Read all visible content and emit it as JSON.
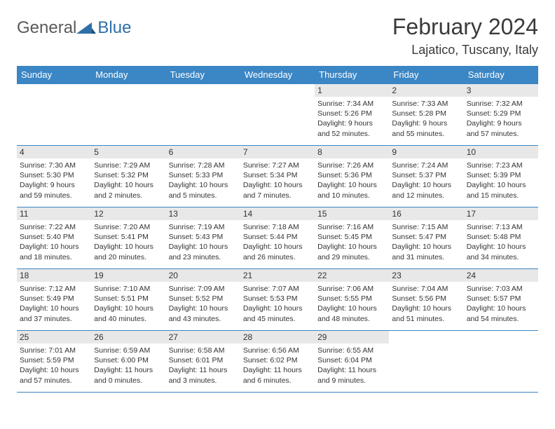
{
  "logo": {
    "text1": "General",
    "text2": "Blue"
  },
  "title": "February 2024",
  "location": "Lajatico, Tuscany, Italy",
  "header_bg": "#3b86c4",
  "dayNames": [
    "Sunday",
    "Monday",
    "Tuesday",
    "Wednesday",
    "Thursday",
    "Friday",
    "Saturday"
  ],
  "weeks": [
    [
      null,
      null,
      null,
      null,
      {
        "n": "1",
        "sr": "7:34 AM",
        "ss": "5:26 PM",
        "dl": "9 hours and 52 minutes."
      },
      {
        "n": "2",
        "sr": "7:33 AM",
        "ss": "5:28 PM",
        "dl": "9 hours and 55 minutes."
      },
      {
        "n": "3",
        "sr": "7:32 AM",
        "ss": "5:29 PM",
        "dl": "9 hours and 57 minutes."
      }
    ],
    [
      {
        "n": "4",
        "sr": "7:30 AM",
        "ss": "5:30 PM",
        "dl": "9 hours and 59 minutes."
      },
      {
        "n": "5",
        "sr": "7:29 AM",
        "ss": "5:32 PM",
        "dl": "10 hours and 2 minutes."
      },
      {
        "n": "6",
        "sr": "7:28 AM",
        "ss": "5:33 PM",
        "dl": "10 hours and 5 minutes."
      },
      {
        "n": "7",
        "sr": "7:27 AM",
        "ss": "5:34 PM",
        "dl": "10 hours and 7 minutes."
      },
      {
        "n": "8",
        "sr": "7:26 AM",
        "ss": "5:36 PM",
        "dl": "10 hours and 10 minutes."
      },
      {
        "n": "9",
        "sr": "7:24 AM",
        "ss": "5:37 PM",
        "dl": "10 hours and 12 minutes."
      },
      {
        "n": "10",
        "sr": "7:23 AM",
        "ss": "5:39 PM",
        "dl": "10 hours and 15 minutes."
      }
    ],
    [
      {
        "n": "11",
        "sr": "7:22 AM",
        "ss": "5:40 PM",
        "dl": "10 hours and 18 minutes."
      },
      {
        "n": "12",
        "sr": "7:20 AM",
        "ss": "5:41 PM",
        "dl": "10 hours and 20 minutes."
      },
      {
        "n": "13",
        "sr": "7:19 AM",
        "ss": "5:43 PM",
        "dl": "10 hours and 23 minutes."
      },
      {
        "n": "14",
        "sr": "7:18 AM",
        "ss": "5:44 PM",
        "dl": "10 hours and 26 minutes."
      },
      {
        "n": "15",
        "sr": "7:16 AM",
        "ss": "5:45 PM",
        "dl": "10 hours and 29 minutes."
      },
      {
        "n": "16",
        "sr": "7:15 AM",
        "ss": "5:47 PM",
        "dl": "10 hours and 31 minutes."
      },
      {
        "n": "17",
        "sr": "7:13 AM",
        "ss": "5:48 PM",
        "dl": "10 hours and 34 minutes."
      }
    ],
    [
      {
        "n": "18",
        "sr": "7:12 AM",
        "ss": "5:49 PM",
        "dl": "10 hours and 37 minutes."
      },
      {
        "n": "19",
        "sr": "7:10 AM",
        "ss": "5:51 PM",
        "dl": "10 hours and 40 minutes."
      },
      {
        "n": "20",
        "sr": "7:09 AM",
        "ss": "5:52 PM",
        "dl": "10 hours and 43 minutes."
      },
      {
        "n": "21",
        "sr": "7:07 AM",
        "ss": "5:53 PM",
        "dl": "10 hours and 45 minutes."
      },
      {
        "n": "22",
        "sr": "7:06 AM",
        "ss": "5:55 PM",
        "dl": "10 hours and 48 minutes."
      },
      {
        "n": "23",
        "sr": "7:04 AM",
        "ss": "5:56 PM",
        "dl": "10 hours and 51 minutes."
      },
      {
        "n": "24",
        "sr": "7:03 AM",
        "ss": "5:57 PM",
        "dl": "10 hours and 54 minutes."
      }
    ],
    [
      {
        "n": "25",
        "sr": "7:01 AM",
        "ss": "5:59 PM",
        "dl": "10 hours and 57 minutes."
      },
      {
        "n": "26",
        "sr": "6:59 AM",
        "ss": "6:00 PM",
        "dl": "11 hours and 0 minutes."
      },
      {
        "n": "27",
        "sr": "6:58 AM",
        "ss": "6:01 PM",
        "dl": "11 hours and 3 minutes."
      },
      {
        "n": "28",
        "sr": "6:56 AM",
        "ss": "6:02 PM",
        "dl": "11 hours and 6 minutes."
      },
      {
        "n": "29",
        "sr": "6:55 AM",
        "ss": "6:04 PM",
        "dl": "11 hours and 9 minutes."
      },
      null,
      null
    ]
  ],
  "labels": {
    "sunrise": "Sunrise: ",
    "sunset": "Sunset: ",
    "daylight": "Daylight: "
  }
}
